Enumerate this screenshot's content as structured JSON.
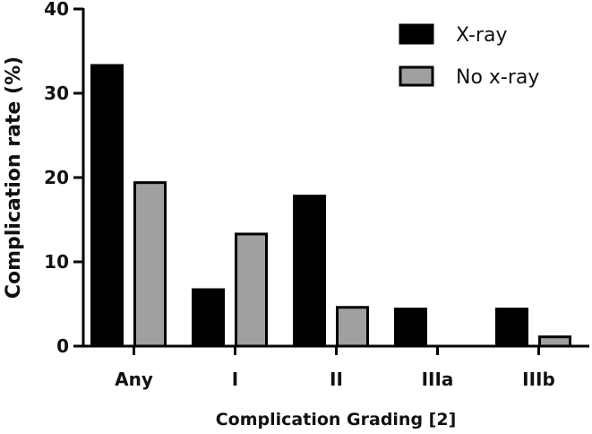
{
  "chart_data": {
    "type": "bar",
    "title": "",
    "xlabel": "Complication Grading [2]",
    "ylabel": "Complication rate (%)",
    "ylim": [
      0,
      40
    ],
    "yticks": [
      0,
      10,
      20,
      30,
      40
    ],
    "categories": [
      "Any",
      "I",
      "II",
      "IIIa",
      "IIIb"
    ],
    "series": [
      {
        "name": "X-ray",
        "color": "#000000",
        "values": [
          33.3,
          6.7,
          17.8,
          4.4,
          4.4
        ]
      },
      {
        "name": "No x-ray",
        "color": "#a0a0a0",
        "values": [
          19.4,
          13.3,
          4.6,
          0,
          1.1
        ]
      }
    ],
    "legend_position": "top-right",
    "grid": false
  }
}
